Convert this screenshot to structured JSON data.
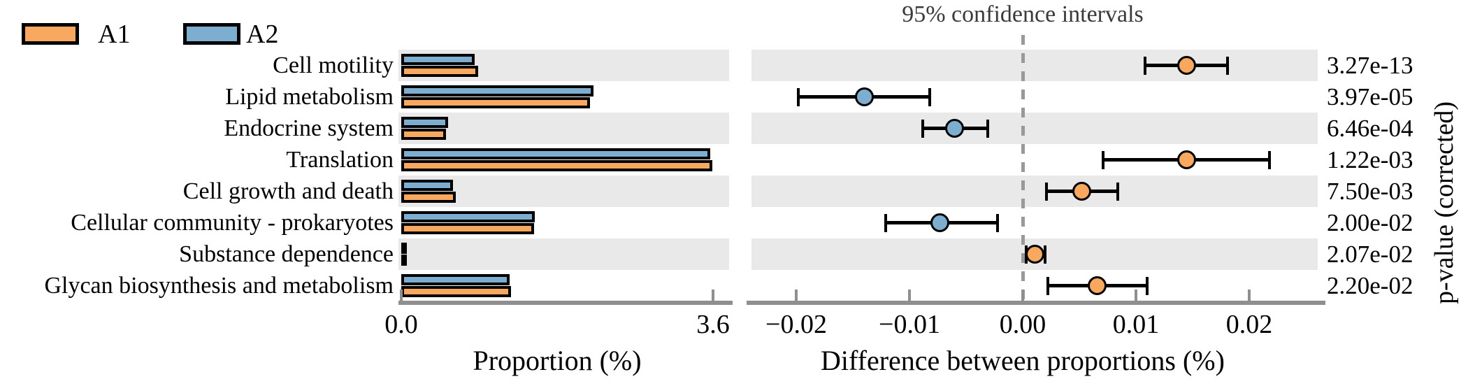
{
  "title": "95% confidence intervals",
  "legend": {
    "items": [
      {
        "label": "A1",
        "color": "#F9A85F"
      },
      {
        "label": "A2",
        "color": "#7EAECF"
      }
    ]
  },
  "p_axis_label": "p-value (corrected)",
  "chart_data": {
    "type": "bar",
    "subtype": "extended-error-bar",
    "title": "95% confidence intervals",
    "categories": [
      "Cell motility",
      "Lipid metabolism",
      "Endocrine system",
      "Translation",
      "Cell growth and death",
      "Cellular community - prokaryotes",
      "Substance dependence",
      "Glycan biosynthesis and metabolism"
    ],
    "series": [
      {
        "name": "A1",
        "color": "#F9A85F",
        "values": [
          0.89,
          2.18,
          0.52,
          3.59,
          0.63,
          1.53,
          0.06,
          1.27
        ]
      },
      {
        "name": "A2",
        "color": "#7EAECF",
        "values": [
          0.85,
          2.22,
          0.54,
          3.57,
          0.6,
          1.54,
          0.05,
          1.25
        ]
      }
    ],
    "proportion_axis": {
      "label": "Proportion (%)",
      "tick_labels": [
        "0.0",
        "3.6"
      ],
      "tick_values": [
        0.0,
        3.6
      ],
      "max": 3.6
    },
    "difference": {
      "centers": [
        0.0145,
        -0.014,
        -0.006,
        0.0145,
        0.0052,
        -0.0073,
        0.0011,
        0.0066
      ],
      "ci_low": [
        0.0108,
        -0.0198,
        -0.0088,
        0.0071,
        0.0021,
        -0.0121,
        0.0003,
        0.0022
      ],
      "ci_high": [
        0.0181,
        -0.0082,
        -0.0031,
        0.0218,
        0.0084,
        -0.0022,
        0.002,
        0.011
      ],
      "enriched_series": [
        "A1",
        "A2",
        "A2",
        "A1",
        "A1",
        "A2",
        "A1",
        "A1"
      ]
    },
    "difference_axis": {
      "label": "Difference between proportions (%)",
      "tick_labels": [
        "−0.02",
        "−0.01",
        "0.00",
        "0.01",
        "0.02"
      ],
      "tick_values": [
        -0.02,
        -0.01,
        0.0,
        0.01,
        0.02
      ],
      "zero_line": true
    },
    "p_values": [
      "3.27e-13",
      "3.97e-05",
      "6.46e-04",
      "1.22e-03",
      "7.50e-03",
      "2.00e-02",
      "2.07e-02",
      "2.20e-02"
    ],
    "p_axis_label": "p-value (corrected)",
    "colors": {
      "A1": "#F9A85F",
      "A2": "#7EAECF",
      "row_stripe": "#E9E9E9",
      "axis": "#8F8F8F",
      "zero_line": "#999999"
    },
    "legend_position": "top-left",
    "grid": false
  }
}
